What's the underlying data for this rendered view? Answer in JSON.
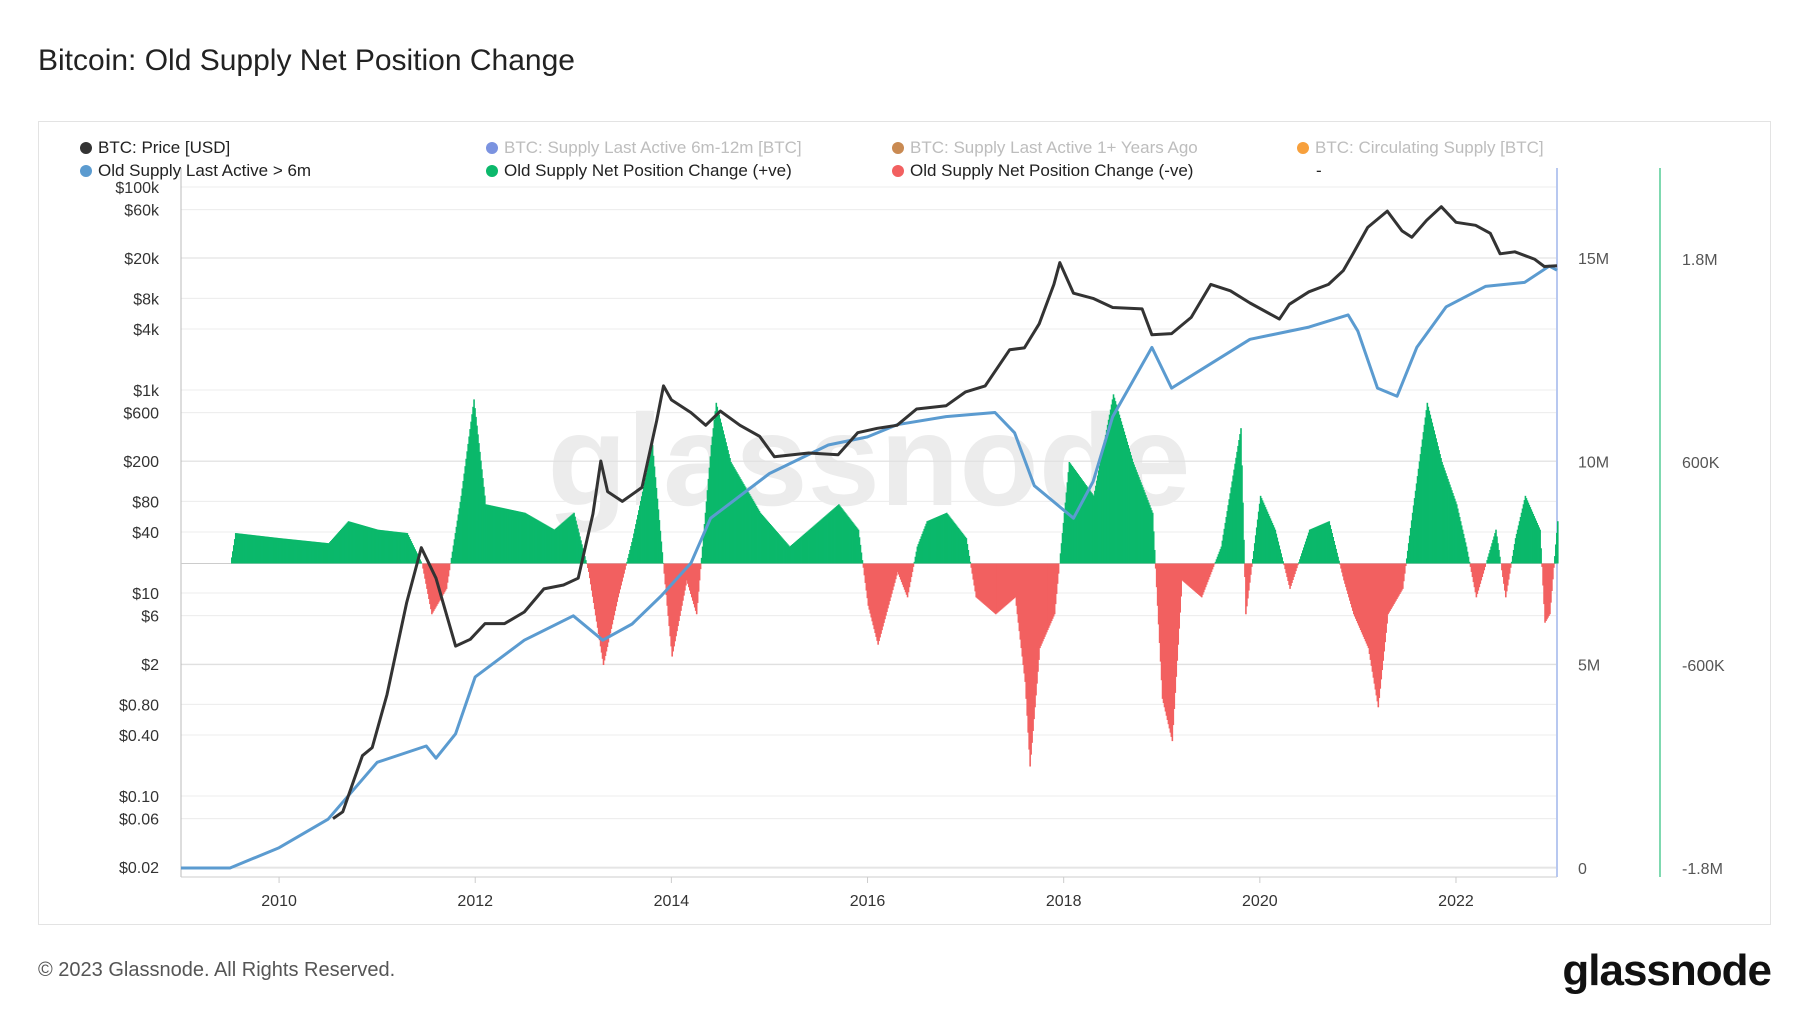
{
  "title": "Bitcoin: Old Supply Net Position Change",
  "footer": "© 2023 Glassnode. All Rights Reserved.",
  "logo": "glassnode",
  "watermark": "glassnode",
  "legend": [
    {
      "label": "BTC: Price [USD]",
      "color": "#333333",
      "active": true
    },
    {
      "label": "BTC: Supply Last Active 6m-12m [BTC]",
      "color": "#7b93e0",
      "active": false
    },
    {
      "label": "BTC: Supply Last Active 1+ Years Ago",
      "color": "#c98a52",
      "active": false
    },
    {
      "label": "BTC: Circulating Supply [BTC]",
      "color": "#f7a03c",
      "active": false
    },
    {
      "label": "Old Supply Last Active > 6m",
      "color": "#5b9bd0",
      "active": true
    },
    {
      "label": "Old Supply Net Position Change (+ve)",
      "color": "#0bb86b",
      "active": true
    },
    {
      "label": "Old Supply Net Position Change (-ve)",
      "color": "#f26060",
      "active": true
    },
    {
      "label": "-",
      "color": "",
      "active": true
    }
  ],
  "chart_data": {
    "type": "line",
    "title": "Bitcoin: Old Supply Net Position Change",
    "x_range": [
      2009.0,
      2023.03
    ],
    "x_ticks": [
      "2010",
      "2012",
      "2014",
      "2016",
      "2018",
      "2020",
      "2022"
    ],
    "y_left": {
      "scale": "log",
      "range": [
        0.02,
        100000
      ],
      "ticks": [
        {
          "v": 100000,
          "l": "$100k"
        },
        {
          "v": 60000,
          "l": "$60k"
        },
        {
          "v": 20000,
          "l": "$20k"
        },
        {
          "v": 8000,
          "l": "$8k"
        },
        {
          "v": 4000,
          "l": "$4k"
        },
        {
          "v": 1000,
          "l": "$1k"
        },
        {
          "v": 600,
          "l": "$600"
        },
        {
          "v": 200,
          "l": "$200"
        },
        {
          "v": 80,
          "l": "$80"
        },
        {
          "v": 40,
          "l": "$40"
        },
        {
          "v": 10,
          "l": "$10"
        },
        {
          "v": 6,
          "l": "$6"
        },
        {
          "v": 2,
          "l": "$2"
        },
        {
          "v": 0.8,
          "l": "$0.80"
        },
        {
          "v": 0.4,
          "l": "$0.40"
        },
        {
          "v": 0.1,
          "l": "$0.10"
        },
        {
          "v": 0.06,
          "l": "$0.06"
        },
        {
          "v": 0.02,
          "l": "$0.02"
        }
      ]
    },
    "y_right_supply": {
      "range": [
        0,
        17.2
      ],
      "unit": "M",
      "ticks": [
        {
          "v": 0,
          "l": "0"
        },
        {
          "v": 5,
          "l": "5M"
        },
        {
          "v": 10,
          "l": "10M"
        },
        {
          "v": 15,
          "l": "15M"
        }
      ]
    },
    "y_right_net": {
      "range": [
        -1800,
        1800
      ],
      "unit": "K",
      "ticks": [
        {
          "v": 1800,
          "l": "1.8M"
        },
        {
          "v": 600,
          "l": "600K"
        },
        {
          "v": -600,
          "l": "-600K"
        },
        {
          "v": -1800,
          "l": "-1.8M"
        }
      ]
    },
    "grid": true,
    "legend_position": "top",
    "series": [
      {
        "name": "BTC: Price [USD]",
        "axis": "left",
        "color": "#333333",
        "points": [
          [
            2010.55,
            0.06
          ],
          [
            2010.65,
            0.07
          ],
          [
            2010.85,
            0.25
          ],
          [
            2010.95,
            0.3
          ],
          [
            2011.1,
            1
          ],
          [
            2011.3,
            8
          ],
          [
            2011.45,
            28
          ],
          [
            2011.6,
            14
          ],
          [
            2011.8,
            3
          ],
          [
            2011.95,
            3.5
          ],
          [
            2012.1,
            5
          ],
          [
            2012.3,
            5
          ],
          [
            2012.5,
            6.5
          ],
          [
            2012.7,
            11
          ],
          [
            2012.9,
            12
          ],
          [
            2013.05,
            14
          ],
          [
            2013.2,
            60
          ],
          [
            2013.28,
            200
          ],
          [
            2013.35,
            100
          ],
          [
            2013.5,
            80
          ],
          [
            2013.7,
            110
          ],
          [
            2013.85,
            500
          ],
          [
            2013.92,
            1100
          ],
          [
            2014.0,
            800
          ],
          [
            2014.2,
            600
          ],
          [
            2014.35,
            450
          ],
          [
            2014.5,
            620
          ],
          [
            2014.7,
            450
          ],
          [
            2014.9,
            350
          ],
          [
            2015.05,
            220
          ],
          [
            2015.4,
            240
          ],
          [
            2015.7,
            230
          ],
          [
            2015.9,
            380
          ],
          [
            2016.1,
            420
          ],
          [
            2016.3,
            450
          ],
          [
            2016.5,
            650
          ],
          [
            2016.8,
            700
          ],
          [
            2017.0,
            960
          ],
          [
            2017.2,
            1100
          ],
          [
            2017.45,
            2500
          ],
          [
            2017.6,
            2600
          ],
          [
            2017.75,
            4500
          ],
          [
            2017.9,
            11000
          ],
          [
            2017.96,
            18000
          ],
          [
            2018.1,
            9000
          ],
          [
            2018.3,
            8000
          ],
          [
            2018.5,
            6500
          ],
          [
            2018.8,
            6300
          ],
          [
            2018.9,
            3500
          ],
          [
            2019.1,
            3600
          ],
          [
            2019.3,
            5200
          ],
          [
            2019.5,
            11000
          ],
          [
            2019.7,
            9500
          ],
          [
            2019.9,
            7200
          ],
          [
            2020.2,
            5000
          ],
          [
            2020.3,
            7000
          ],
          [
            2020.5,
            9300
          ],
          [
            2020.7,
            11000
          ],
          [
            2020.85,
            15000
          ],
          [
            2020.95,
            22000
          ],
          [
            2021.1,
            40000
          ],
          [
            2021.3,
            58000
          ],
          [
            2021.45,
            37000
          ],
          [
            2021.55,
            32000
          ],
          [
            2021.7,
            47000
          ],
          [
            2021.85,
            64000
          ],
          [
            2022.0,
            45000
          ],
          [
            2022.2,
            42000
          ],
          [
            2022.35,
            35000
          ],
          [
            2022.45,
            22000
          ],
          [
            2022.6,
            23000
          ],
          [
            2022.8,
            19500
          ],
          [
            2022.9,
            16500
          ],
          [
            2023.03,
            16800
          ]
        ]
      },
      {
        "name": "Old Supply Last Active > 6m",
        "axis": "right_supply",
        "color": "#5b9bd0",
        "points": [
          [
            2009.0,
            0
          ],
          [
            2009.5,
            0
          ],
          [
            2010.0,
            0.5
          ],
          [
            2010.5,
            1.2
          ],
          [
            2011.0,
            2.6
          ],
          [
            2011.5,
            3.0
          ],
          [
            2011.6,
            2.7
          ],
          [
            2011.8,
            3.3
          ],
          [
            2012.0,
            4.7
          ],
          [
            2012.5,
            5.6
          ],
          [
            2013.0,
            6.2
          ],
          [
            2013.3,
            5.6
          ],
          [
            2013.6,
            6.0
          ],
          [
            2013.9,
            6.7
          ],
          [
            2014.2,
            7.5
          ],
          [
            2014.4,
            8.6
          ],
          [
            2015.0,
            9.7
          ],
          [
            2015.6,
            10.4
          ],
          [
            2016.0,
            10.6
          ],
          [
            2016.3,
            10.9
          ],
          [
            2016.8,
            11.1
          ],
          [
            2017.3,
            11.2
          ],
          [
            2017.5,
            10.7
          ],
          [
            2017.7,
            9.4
          ],
          [
            2018.1,
            8.6
          ],
          [
            2018.3,
            9.5
          ],
          [
            2018.5,
            11.1
          ],
          [
            2018.9,
            12.8
          ],
          [
            2019.1,
            11.8
          ],
          [
            2019.5,
            12.4
          ],
          [
            2019.9,
            13.0
          ],
          [
            2020.5,
            13.3
          ],
          [
            2020.9,
            13.6
          ],
          [
            2021.0,
            13.2
          ],
          [
            2021.2,
            11.8
          ],
          [
            2021.4,
            11.6
          ],
          [
            2021.6,
            12.8
          ],
          [
            2021.9,
            13.8
          ],
          [
            2022.3,
            14.3
          ],
          [
            2022.7,
            14.4
          ],
          [
            2022.95,
            14.8
          ],
          [
            2023.03,
            14.7
          ]
        ]
      },
      {
        "name": "Old Supply Net Position Change",
        "axis": "right_net",
        "type": "bar",
        "positive_color": "#0bb86b",
        "negative_color": "#f26060",
        "points": [
          [
            2009.5,
            0
          ],
          [
            2009.55,
            180
          ],
          [
            2010.0,
            150
          ],
          [
            2010.5,
            120
          ],
          [
            2010.7,
            250
          ],
          [
            2011.0,
            200
          ],
          [
            2011.3,
            180
          ],
          [
            2011.45,
            0
          ],
          [
            2011.55,
            -300
          ],
          [
            2011.7,
            -150
          ],
          [
            2011.85,
            400
          ],
          [
            2011.98,
            970
          ],
          [
            2012.1,
            350
          ],
          [
            2012.5,
            300
          ],
          [
            2012.8,
            200
          ],
          [
            2013.0,
            300
          ],
          [
            2013.15,
            -50
          ],
          [
            2013.3,
            -600
          ],
          [
            2013.45,
            -200
          ],
          [
            2013.6,
            150
          ],
          [
            2013.8,
            700
          ],
          [
            2013.95,
            -250
          ],
          [
            2014.0,
            -550
          ],
          [
            2014.15,
            -100
          ],
          [
            2014.25,
            -300
          ],
          [
            2014.4,
            700
          ],
          [
            2014.45,
            950
          ],
          [
            2014.6,
            600
          ],
          [
            2014.9,
            300
          ],
          [
            2015.2,
            100
          ],
          [
            2015.5,
            250
          ],
          [
            2015.7,
            350
          ],
          [
            2015.9,
            200
          ],
          [
            2016.0,
            -250
          ],
          [
            2016.1,
            -480
          ],
          [
            2016.3,
            -50
          ],
          [
            2016.4,
            -200
          ],
          [
            2016.5,
            100
          ],
          [
            2016.6,
            250
          ],
          [
            2016.8,
            300
          ],
          [
            2017.0,
            150
          ],
          [
            2017.1,
            -200
          ],
          [
            2017.3,
            -300
          ],
          [
            2017.5,
            -200
          ],
          [
            2017.6,
            -700
          ],
          [
            2017.65,
            -1200
          ],
          [
            2017.75,
            -500
          ],
          [
            2017.9,
            -300
          ],
          [
            2018.05,
            600
          ],
          [
            2018.3,
            400
          ],
          [
            2018.5,
            1000
          ],
          [
            2018.7,
            600
          ],
          [
            2018.9,
            300
          ],
          [
            2019.0,
            -800
          ],
          [
            2019.1,
            -1050
          ],
          [
            2019.2,
            -100
          ],
          [
            2019.4,
            -200
          ],
          [
            2019.6,
            100
          ],
          [
            2019.8,
            800
          ],
          [
            2019.85,
            -300
          ],
          [
            2020.0,
            400
          ],
          [
            2020.15,
            200
          ],
          [
            2020.3,
            -150
          ],
          [
            2020.5,
            200
          ],
          [
            2020.7,
            250
          ],
          [
            2020.85,
            -100
          ],
          [
            2020.95,
            -300
          ],
          [
            2021.1,
            -500
          ],
          [
            2021.2,
            -850
          ],
          [
            2021.3,
            -300
          ],
          [
            2021.45,
            -150
          ],
          [
            2021.55,
            300
          ],
          [
            2021.7,
            950
          ],
          [
            2021.85,
            600
          ],
          [
            2022.0,
            350
          ],
          [
            2022.1,
            100
          ],
          [
            2022.2,
            -200
          ],
          [
            2022.4,
            200
          ],
          [
            2022.5,
            -200
          ],
          [
            2022.6,
            150
          ],
          [
            2022.7,
            400
          ],
          [
            2022.85,
            200
          ],
          [
            2022.9,
            -350
          ],
          [
            2022.95,
            -300
          ],
          [
            2023.03,
            250
          ]
        ]
      }
    ]
  }
}
